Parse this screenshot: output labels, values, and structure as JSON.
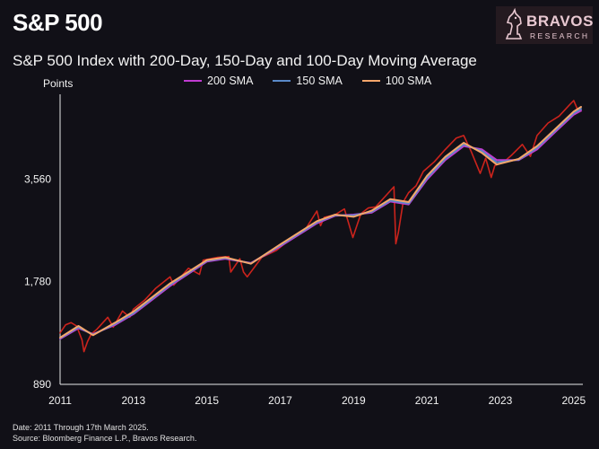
{
  "header": {
    "title": "S&P 500",
    "subtitle": "S&P 500 Index with 200-Day, 150-Day and 100-Day Moving Average"
  },
  "brand": {
    "name": "BRAVOS",
    "tagline": "RESEARCH",
    "logo_icon": "knight-chess-piece-icon",
    "color": "#e9c9d2"
  },
  "footer": {
    "line1": "Date: 2011 Through 17th March 2025.",
    "line2": "Source: Bloomberg Finance L.P., Bravos Research."
  },
  "chart_data": {
    "type": "line",
    "title": "S&P 500 Index with 200-Day, 150-Day and 100-Day Moving Average",
    "ylabel": "Points",
    "xlabel": "",
    "y_scale": "log",
    "ylim": [
      890,
      6200
    ],
    "y_ticks": [
      890,
      1780,
      3560
    ],
    "y_tick_labels": [
      "890",
      "1,780",
      "3,560"
    ],
    "xlim": [
      2011.0,
      2025.2
    ],
    "x_ticks": [
      2011,
      2013,
      2015,
      2017,
      2019,
      2021,
      2023,
      2025
    ],
    "x_tick_labels": [
      "2011",
      "2013",
      "2015",
      "2017",
      "2019",
      "2021",
      "2023",
      "2025"
    ],
    "grid": false,
    "legend_position": "top-center",
    "series": [
      {
        "name": "S&P 500",
        "color": "#e0261d",
        "x": [
          2011.0,
          2011.15,
          2011.3,
          2011.45,
          2011.6,
          2011.65,
          2011.75,
          2011.85,
          2012.0,
          2012.3,
          2012.45,
          2012.7,
          2012.9,
          2013.0,
          2013.3,
          2013.6,
          2014.0,
          2014.1,
          2014.5,
          2014.8,
          2014.9,
          2015.3,
          2015.6,
          2015.65,
          2015.9,
          2016.0,
          2016.1,
          2016.5,
          2016.9,
          2017.3,
          2017.7,
          2018.0,
          2018.1,
          2018.2,
          2018.5,
          2018.75,
          2018.98,
          2019.2,
          2019.4,
          2019.6,
          2019.9,
          2020.1,
          2020.15,
          2020.22,
          2020.35,
          2020.5,
          2020.7,
          2020.9,
          2021.2,
          2021.5,
          2021.8,
          2022.0,
          2022.2,
          2022.45,
          2022.6,
          2022.75,
          2022.85,
          2023.1,
          2023.3,
          2023.6,
          2023.82,
          2024.0,
          2024.3,
          2024.6,
          2024.9,
          2025.0,
          2025.12,
          2025.2
        ],
        "y": [
          1260,
          1330,
          1350,
          1320,
          1200,
          1110,
          1190,
          1250,
          1290,
          1400,
          1310,
          1460,
          1400,
          1480,
          1570,
          1700,
          1840,
          1740,
          1950,
          1870,
          2060,
          2100,
          2110,
          1900,
          2080,
          1900,
          1840,
          2100,
          2200,
          2390,
          2550,
          2870,
          2600,
          2750,
          2800,
          2910,
          2400,
          2820,
          2930,
          2950,
          3200,
          3380,
          2300,
          2480,
          3050,
          3250,
          3400,
          3750,
          4000,
          4350,
          4700,
          4780,
          4300,
          3700,
          4100,
          3600,
          3900,
          4000,
          4180,
          4500,
          4150,
          4780,
          5200,
          5450,
          5900,
          6050,
          5650,
          5640
        ]
      },
      {
        "name": "200 SMA",
        "color": "#c03bd1",
        "x": [
          2011.0,
          2011.5,
          2011.9,
          2012.5,
          2013.0,
          2014.0,
          2015.0,
          2015.5,
          2016.2,
          2017.0,
          2018.0,
          2018.5,
          2019.0,
          2019.5,
          2020.0,
          2020.5,
          2021.0,
          2021.5,
          2022.0,
          2022.5,
          2022.9,
          2023.5,
          2024.0,
          2024.5,
          2025.0,
          2025.2
        ],
        "y": [
          1210,
          1300,
          1250,
          1330,
          1430,
          1730,
          2040,
          2080,
          2020,
          2260,
          2640,
          2780,
          2800,
          2840,
          3060,
          3000,
          3550,
          4050,
          4450,
          4350,
          4050,
          4050,
          4350,
          4900,
          5500,
          5650
        ]
      },
      {
        "name": "150 SMA",
        "color": "#5a89c9",
        "x": [
          2011.0,
          2011.5,
          2011.9,
          2012.5,
          2013.0,
          2014.0,
          2015.0,
          2015.5,
          2016.2,
          2017.0,
          2018.0,
          2018.5,
          2019.0,
          2019.5,
          2020.0,
          2020.5,
          2021.0,
          2021.5,
          2022.0,
          2022.5,
          2022.9,
          2023.5,
          2024.0,
          2024.5,
          2025.0,
          2025.2
        ],
        "y": [
          1215,
          1310,
          1245,
          1340,
          1440,
          1745,
          2050,
          2090,
          2015,
          2275,
          2660,
          2790,
          2785,
          2860,
          3080,
          3020,
          3590,
          4090,
          4500,
          4300,
          3990,
          4060,
          4400,
          4950,
          5560,
          5720
        ]
      },
      {
        "name": "100 SMA",
        "color": "#f5a66b",
        "x": [
          2011.0,
          2011.5,
          2011.9,
          2012.5,
          2013.0,
          2014.0,
          2015.0,
          2015.5,
          2016.2,
          2017.0,
          2018.0,
          2018.5,
          2019.0,
          2019.5,
          2020.0,
          2020.5,
          2021.0,
          2021.5,
          2022.0,
          2022.5,
          2022.9,
          2023.5,
          2024.0,
          2024.5,
          2025.0,
          2025.2
        ],
        "y": [
          1220,
          1320,
          1240,
          1350,
          1455,
          1760,
          2060,
          2100,
          2010,
          2290,
          2680,
          2800,
          2760,
          2880,
          3110,
          3050,
          3640,
          4140,
          4550,
          4250,
          3930,
          4080,
          4450,
          5000,
          5620,
          5800
        ]
      }
    ]
  }
}
